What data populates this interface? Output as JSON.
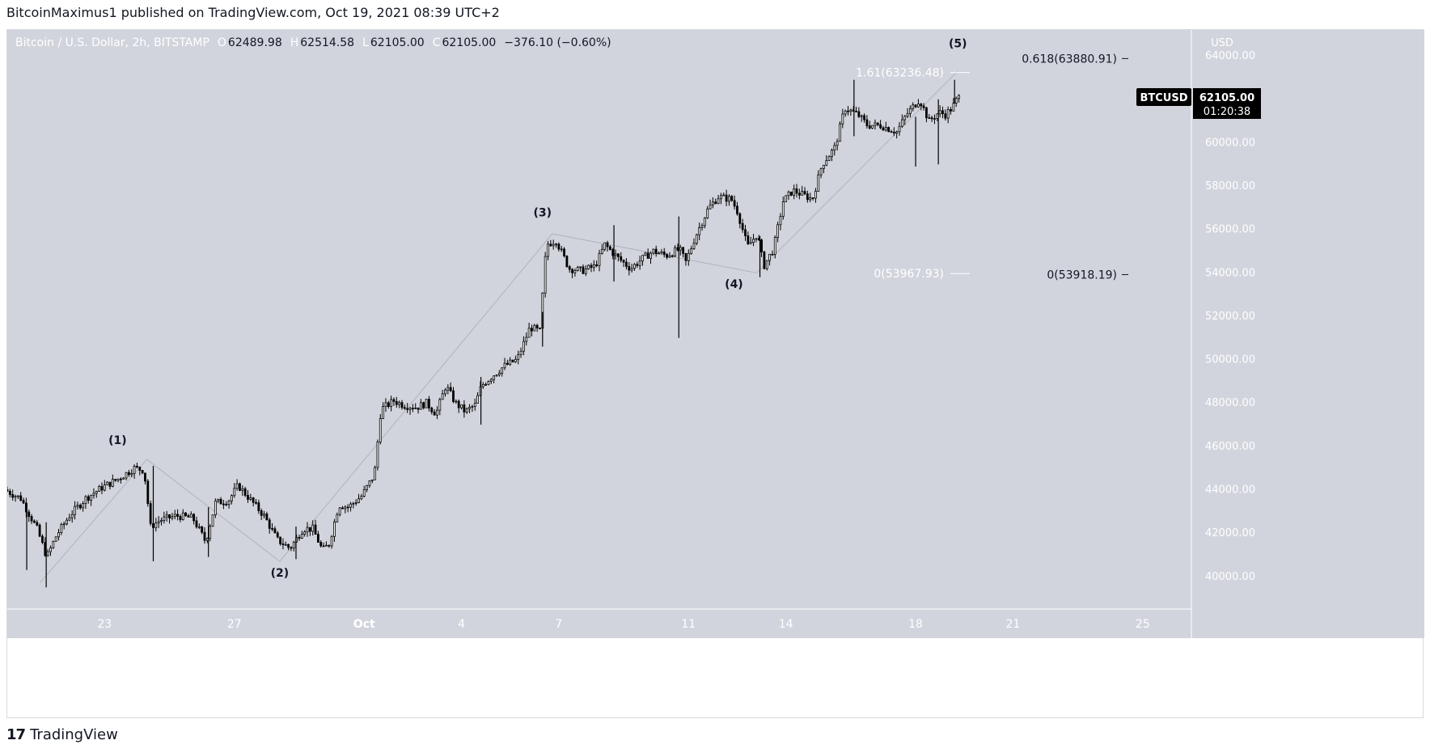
{
  "header": {
    "text": "BitcoinMaximus1 published on TradingView.com, Oct 19, 2021 08:39 UTC+2"
  },
  "footer": {
    "logo": "17",
    "brand": "TradingView"
  },
  "colors": {
    "chart_bg": "#d1d4dc",
    "candle": "#000000",
    "wave_line": "#b0b3bb",
    "price_tag_bg": "#000000",
    "price_tag_text": "#ffffff",
    "fib_line": "#ffffff"
  },
  "chart_data": {
    "type": "candlestick",
    "symbol_info": {
      "title": "Bitcoin / U.S. Dollar, 2h, BITSTAMP",
      "o_label": "O",
      "o_value": "62489.98",
      "h_label": "H",
      "h_value": "62514.58",
      "l_label": "L",
      "l_value": "62105.00",
      "c_label": "C",
      "c_value": "62105.00",
      "change": "−376.10 (−0.60%)"
    },
    "currency": "USD",
    "ylim": [
      38500,
      65200
    ],
    "y_ticks": [
      {
        "v": 64000,
        "label": "64000.00"
      },
      {
        "v": 62000,
        "label": ""
      },
      {
        "v": 60000,
        "label": "60000.00"
      },
      {
        "v": 58000,
        "label": "58000.00"
      },
      {
        "v": 56000,
        "label": "56000.00"
      },
      {
        "v": 54000,
        "label": "54000.00"
      },
      {
        "v": 52000,
        "label": "52000.00"
      },
      {
        "v": 50000,
        "label": "50000.00"
      },
      {
        "v": 48000,
        "label": "48000.00"
      },
      {
        "v": 46000,
        "label": "46000.00"
      },
      {
        "v": 44000,
        "label": "44000.00"
      },
      {
        "v": 42000,
        "label": "42000.00"
      },
      {
        "v": 40000,
        "label": "40000.00"
      }
    ],
    "x_start": "2021-09-20T00:00",
    "xlim_days": [
      0,
      36.5
    ],
    "x_ticks": [
      {
        "day": 3,
        "label": "23"
      },
      {
        "day": 7,
        "label": "27"
      },
      {
        "day": 11,
        "label": "Oct"
      },
      {
        "day": 14,
        "label": "4"
      },
      {
        "day": 17,
        "label": "7"
      },
      {
        "day": 21,
        "label": "11"
      },
      {
        "day": 24,
        "label": "14"
      },
      {
        "day": 28,
        "label": "18"
      },
      {
        "day": 31,
        "label": "21"
      },
      {
        "day": 35,
        "label": "25"
      }
    ],
    "price_path": [
      [
        0.0,
        44000
      ],
      [
        0.5,
        43600
      ],
      [
        1.0,
        42200
      ],
      [
        1.3,
        40900
      ],
      [
        1.6,
        41900
      ],
      [
        2.0,
        42800
      ],
      [
        2.5,
        43600
      ],
      [
        3.0,
        44100
      ],
      [
        3.5,
        44500
      ],
      [
        4.0,
        45000
      ],
      [
        4.3,
        44900
      ],
      [
        4.5,
        42300
      ],
      [
        4.8,
        42600
      ],
      [
        5.3,
        42800
      ],
      [
        5.8,
        42700
      ],
      [
        6.2,
        41600
      ],
      [
        6.5,
        43400
      ],
      [
        6.9,
        43500
      ],
      [
        7.2,
        44200
      ],
      [
        7.6,
        43500
      ],
      [
        8.0,
        42800
      ],
      [
        8.4,
        41700
      ],
      [
        8.8,
        41300
      ],
      [
        9.2,
        42200
      ],
      [
        9.5,
        42200
      ],
      [
        9.8,
        41200
      ],
      [
        10.0,
        41500
      ],
      [
        10.3,
        43300
      ],
      [
        10.6,
        43200
      ],
      [
        11.0,
        43700
      ],
      [
        11.4,
        44700
      ],
      [
        11.6,
        47700
      ],
      [
        12.0,
        48100
      ],
      [
        12.3,
        47900
      ],
      [
        12.7,
        47800
      ],
      [
        13.0,
        48000
      ],
      [
        13.3,
        47500
      ],
      [
        13.6,
        48800
      ],
      [
        13.9,
        48000
      ],
      [
        14.2,
        47600
      ],
      [
        14.5,
        47900
      ],
      [
        14.7,
        48800
      ],
      [
        15.0,
        49200
      ],
      [
        15.4,
        49700
      ],
      [
        15.8,
        50000
      ],
      [
        16.2,
        51500
      ],
      [
        16.5,
        51300
      ],
      [
        16.7,
        55300
      ],
      [
        17.0,
        55500
      ],
      [
        17.4,
        54200
      ],
      [
        17.8,
        54100
      ],
      [
        18.2,
        54300
      ],
      [
        18.5,
        55300
      ],
      [
        18.9,
        54700
      ],
      [
        19.3,
        54200
      ],
      [
        19.7,
        54700
      ],
      [
        20.0,
        55000
      ],
      [
        20.4,
        54800
      ],
      [
        20.8,
        55100
      ],
      [
        21.0,
        54500
      ],
      [
        21.3,
        55700
      ],
      [
        21.7,
        57000
      ],
      [
        22.0,
        57500
      ],
      [
        22.4,
        57400
      ],
      [
        22.6,
        56800
      ],
      [
        22.9,
        55200
      ],
      [
        23.2,
        55800
      ],
      [
        23.4,
        54300
      ],
      [
        23.7,
        55100
      ],
      [
        24.0,
        57300
      ],
      [
        24.3,
        57800
      ],
      [
        24.6,
        57600
      ],
      [
        24.9,
        57400
      ],
      [
        25.2,
        59000
      ],
      [
        25.6,
        59800
      ],
      [
        25.9,
        61600
      ],
      [
        26.3,
        61300
      ],
      [
        26.6,
        60800
      ],
      [
        27.0,
        60800
      ],
      [
        27.5,
        60500
      ],
      [
        27.8,
        61300
      ],
      [
        28.2,
        62000
      ],
      [
        28.5,
        61000
      ],
      [
        28.8,
        61400
      ],
      [
        29.0,
        61300
      ],
      [
        29.2,
        61600
      ],
      [
        29.4,
        62100
      ]
    ],
    "wave_points": [
      {
        "day": 1.0,
        "price": 39700,
        "label": ""
      },
      {
        "day": 4.3,
        "price": 45400,
        "label": "(1)"
      },
      {
        "day": 8.4,
        "price": 40700,
        "label": "(2)"
      },
      {
        "day": 16.8,
        "price": 55800,
        "label": "(3)"
      },
      {
        "day": 23.1,
        "price": 54000,
        "label": "(4)"
      },
      {
        "day": 29.3,
        "price": 63300,
        "label": "(5)"
      }
    ],
    "wave_label_positions": [
      {
        "label": "(1)",
        "day": 3.4,
        "price": 46100
      },
      {
        "label": "(2)",
        "day": 8.4,
        "price": 40000
      },
      {
        "label": "(3)",
        "day": 16.5,
        "price": 56600
      },
      {
        "label": "(4)",
        "day": 22.4,
        "price": 53300
      },
      {
        "label": "(5)",
        "day": 29.3,
        "price": 64400
      }
    ],
    "spikes": [
      {
        "day": 0.6,
        "low": 40300,
        "high": 43400
      },
      {
        "day": 1.2,
        "low": 39500,
        "high": 42500
      },
      {
        "day": 4.5,
        "low": 40700,
        "high": 45100
      },
      {
        "day": 6.2,
        "low": 40900,
        "high": 43200
      },
      {
        "day": 8.9,
        "low": 40800,
        "high": 42300
      },
      {
        "day": 14.6,
        "low": 47000,
        "high": 49200
      },
      {
        "day": 16.5,
        "low": 50600,
        "high": 52200
      },
      {
        "day": 18.7,
        "low": 53600,
        "high": 56200
      },
      {
        "day": 20.7,
        "low": 51000,
        "high": 56600
      },
      {
        "day": 23.2,
        "low": 53800,
        "high": 55700
      },
      {
        "day": 26.1,
        "low": 60300,
        "high": 62900
      },
      {
        "day": 28.0,
        "low": 58900,
        "high": 61200
      },
      {
        "day": 28.7,
        "low": 59000,
        "high": 62000
      },
      {
        "day": 29.2,
        "low": 61800,
        "high": 62900
      }
    ],
    "fib_levels": [
      {
        "label": "1.61(63236.48)",
        "price": 63236.48,
        "side": "left"
      },
      {
        "label": "0(53967.93)",
        "price": 53967.93,
        "side": "left"
      },
      {
        "label": "0.618(63880.91)",
        "price": 63880.91,
        "side": "right"
      },
      {
        "label": "0(53918.19)",
        "price": 53918.19,
        "side": "right"
      }
    ],
    "last_price": {
      "symbol": "BTCUSD",
      "price": 62105.0,
      "price_label": "62105.00",
      "countdown": "01:20:38"
    }
  }
}
